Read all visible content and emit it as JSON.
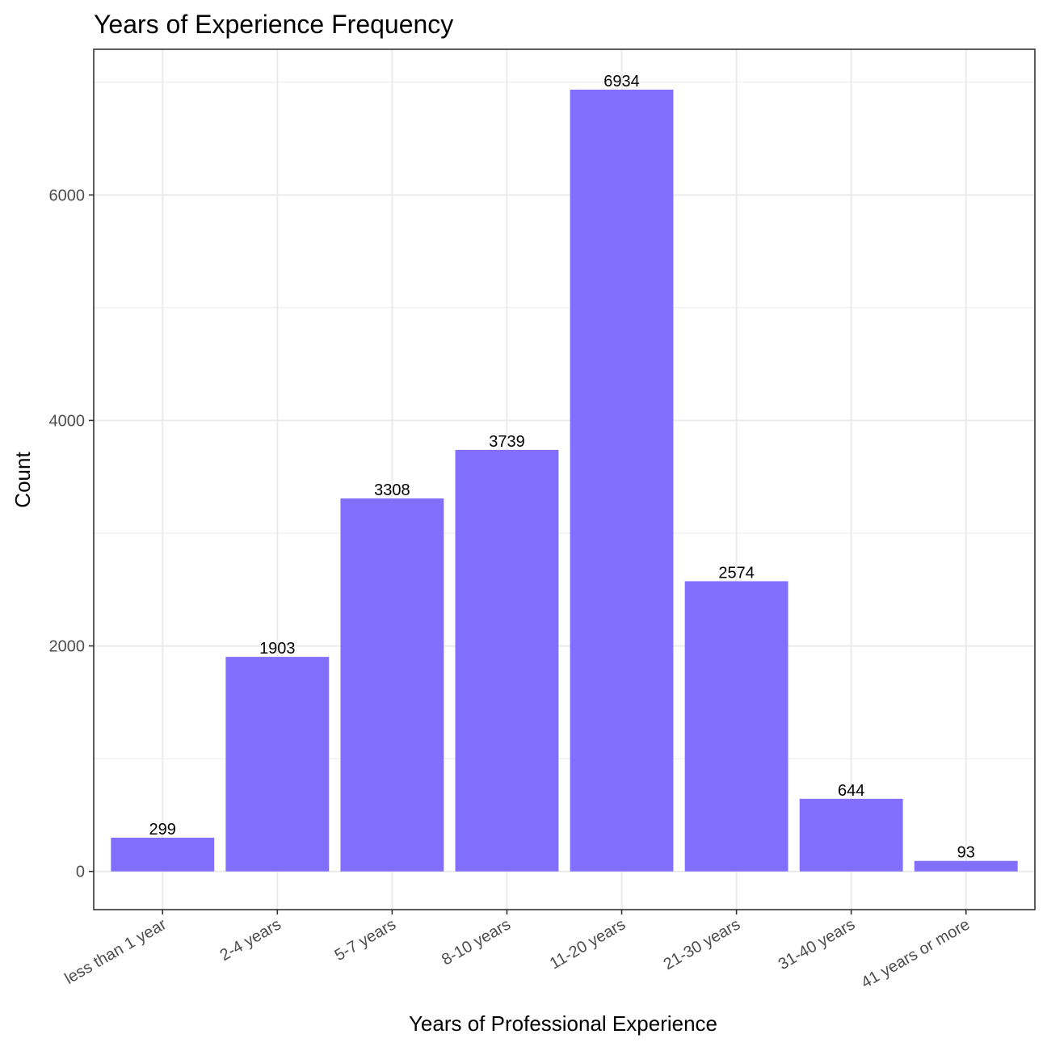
{
  "chart_data": {
    "type": "bar",
    "title": "Years of Experience Frequency",
    "xlabel": "Years of Professional Experience",
    "ylabel": "Count",
    "categories": [
      "less than 1 year",
      "2-4 years",
      "5-7 years",
      "8-10 years",
      "11-20 years",
      "21-30 years",
      "31-40 years",
      "41 years or more"
    ],
    "values": [
      299,
      1903,
      3308,
      3739,
      6934,
      2574,
      644,
      93
    ],
    "ylim": [
      -339,
      7292
    ],
    "yticks": [
      0,
      2000,
      4000,
      6000
    ],
    "yticks_labels": [
      "0",
      "2000",
      "4000",
      "6000"
    ],
    "y_minor_ticks": [
      1000,
      3000,
      5000,
      7000
    ],
    "grid": true,
    "bar_color": "#836FFF",
    "grid_color": "#EBEBEB",
    "panel_border_color": "#333333"
  }
}
